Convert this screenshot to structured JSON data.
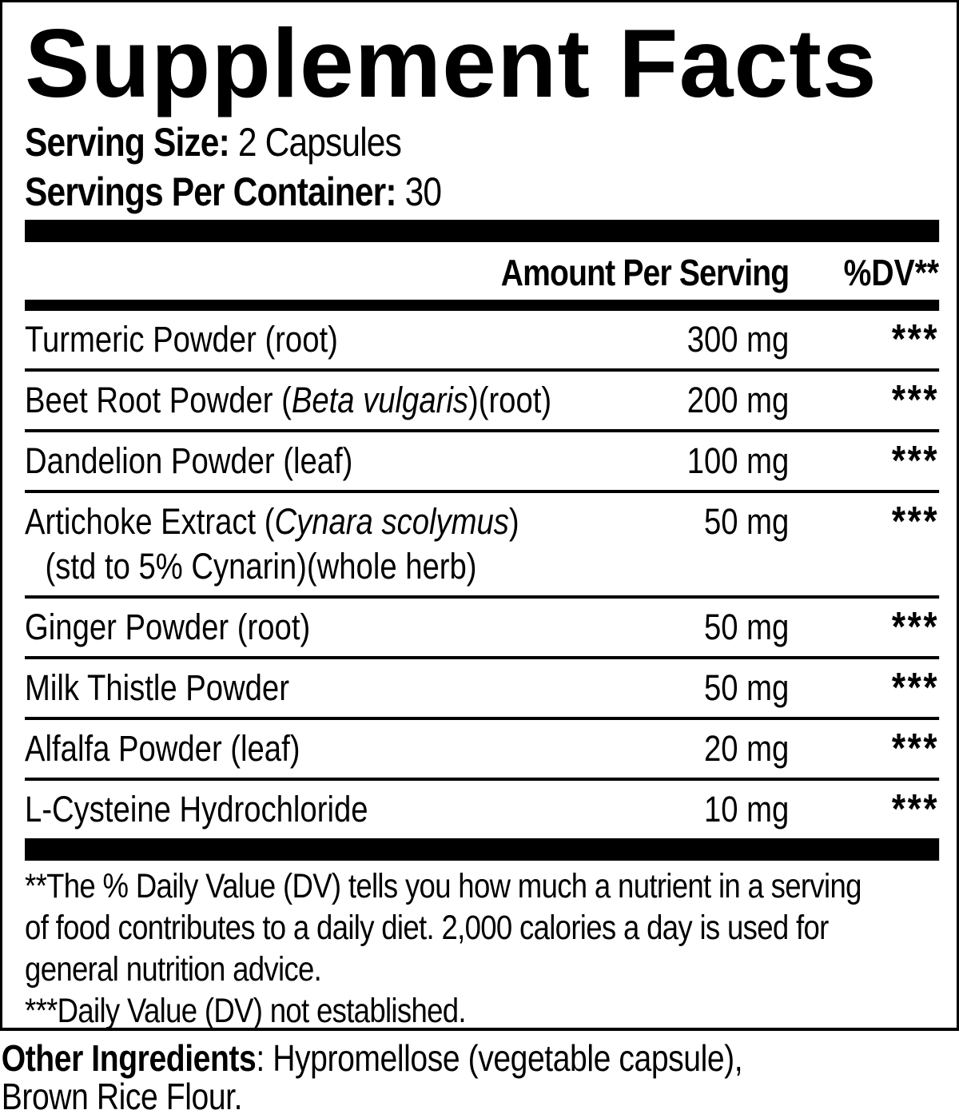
{
  "panel": {
    "title": "Supplement Facts",
    "serving_size_label": "Serving Size:",
    "serving_size_value": "2 Capsules",
    "servings_per_container_label": "Servings Per Container:",
    "servings_per_container_value": "30",
    "columns": {
      "amount": "Amount Per Serving",
      "dv": "%DV**"
    },
    "rows": [
      {
        "name": [
          {
            "t": "Turmeric Powder (root)"
          }
        ],
        "amount": "300 mg",
        "dv": "***"
      },
      {
        "name": [
          {
            "t": "Beet Root Powder ("
          },
          {
            "t": "Beta vulgaris",
            "i": true
          },
          {
            "t": ")(root)"
          }
        ],
        "amount": "200 mg",
        "dv": "***"
      },
      {
        "name": [
          {
            "t": "Dandelion Powder (leaf)"
          }
        ],
        "amount": "100 mg",
        "dv": "***"
      },
      {
        "name": [
          {
            "t": "Artichoke Extract ("
          },
          {
            "t": "Cynara scolymus",
            "i": true
          },
          {
            "t": ")"
          }
        ],
        "name2": [
          {
            "t": "(std to 5% Cynarin)(whole herb)"
          }
        ],
        "amount": "50 mg",
        "dv": "***"
      },
      {
        "name": [
          {
            "t": "Ginger Powder (root)"
          }
        ],
        "amount": "50 mg",
        "dv": "***"
      },
      {
        "name": [
          {
            "t": "Milk Thistle Powder"
          }
        ],
        "amount": "50 mg",
        "dv": "***"
      },
      {
        "name": [
          {
            "t": "Alfalfa Powder (leaf)"
          }
        ],
        "amount": "20 mg",
        "dv": "***"
      },
      {
        "name": [
          {
            "t": "L-Cysteine Hydrochloride"
          }
        ],
        "amount": "10 mg",
        "dv": "***"
      }
    ],
    "footnote_lines": [
      "**The % Daily Value (DV) tells you how much a nutrient in a serving",
      "of food contributes to a daily diet. 2,000 calories a day is used for",
      "general nutrition advice.",
      "***Daily Value (DV) not established."
    ],
    "other_ingredients": {
      "bold": "Other Ingredients",
      "rest": ": Hypromellose (vegetable capsule),",
      "line2": "Brown Rice Flour."
    },
    "colors": {
      "ink": "#000000",
      "background": "#ffffff"
    }
  }
}
